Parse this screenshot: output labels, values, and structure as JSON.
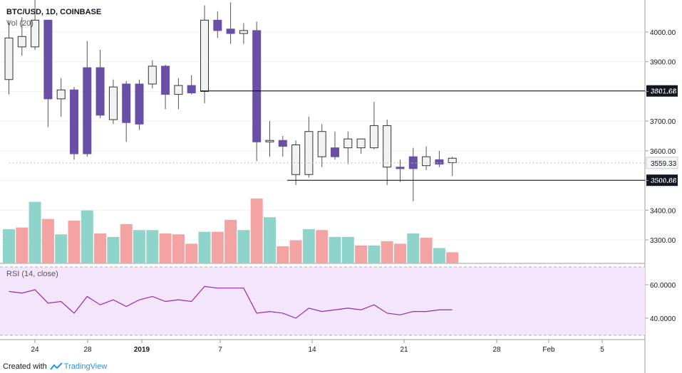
{
  "header": {
    "symbol_line": "BTC/USD, 1D, COINBASE",
    "volume_label": "Vol (20)",
    "rsi_label": "RSI (14, close)"
  },
  "footer": {
    "created_with": "Created with",
    "brand": "TradingView"
  },
  "colors": {
    "up_body": "#f2f2f2",
    "down_body": "#6a4fa6",
    "wick": "#555555",
    "vol_up": "#8fd4cb",
    "vol_down": "#f4a3a3",
    "rsi_line": "#9c27b0",
    "rsi_fill": "#f3e5fb",
    "level_line": "#000000"
  },
  "chart_data": [
    {
      "type": "candlestick",
      "title": "BTC/USD, 1D, COINBASE",
      "x_tick_labels": [
        "24",
        "28",
        "2019",
        "7",
        "14",
        "21",
        "28",
        "Feb",
        "5"
      ],
      "y_tick_labels": [
        "3300.00",
        "3400.00",
        "3500.00",
        "3600.00",
        "3700.00",
        "3800.00",
        "3900.00",
        "4000.00"
      ],
      "ylim": [
        3230,
        4100
      ],
      "horizontal_levels": [
        {
          "label": "3801.68",
          "value": 3801.68
        },
        {
          "label": "3500.88",
          "value": 3500.88
        }
      ],
      "last_price_label": "3559.33",
      "candles": [
        {
          "date": "2018-12-22",
          "open": 3840,
          "high": 4040,
          "low": 3790,
          "close": 3980
        },
        {
          "date": "2018-12-23",
          "open": 3950,
          "high": 4050,
          "low": 3920,
          "close": 3985
        },
        {
          "date": "2018-12-24",
          "open": 3950,
          "high": 4130,
          "low": 3940,
          "close": 4040
        },
        {
          "date": "2018-12-25",
          "open": 4040,
          "high": 4040,
          "low": 3680,
          "close": 3775
        },
        {
          "date": "2018-12-26",
          "open": 3775,
          "high": 3845,
          "low": 3715,
          "close": 3805
        },
        {
          "date": "2018-12-27",
          "open": 3805,
          "high": 3815,
          "low": 3570,
          "close": 3590
        },
        {
          "date": "2018-12-28",
          "open": 3880,
          "high": 3970,
          "low": 3580,
          "close": 3590
        },
        {
          "date": "2018-12-29",
          "open": 3880,
          "high": 3940,
          "low": 3710,
          "close": 3720
        },
        {
          "date": "2018-12-30",
          "open": 3705,
          "high": 3840,
          "low": 3690,
          "close": 3815
        },
        {
          "date": "2018-12-31",
          "open": 3825,
          "high": 3835,
          "low": 3630,
          "close": 3695
        },
        {
          "date": "2019-01-01",
          "open": 3825,
          "high": 3840,
          "low": 3670,
          "close": 3690
        },
        {
          "date": "2019-01-02",
          "open": 3825,
          "high": 3905,
          "low": 3810,
          "close": 3885
        },
        {
          "date": "2019-01-03",
          "open": 3885,
          "high": 3890,
          "low": 3740,
          "close": 3790
        },
        {
          "date": "2019-01-04",
          "open": 3790,
          "high": 3845,
          "low": 3740,
          "close": 3820
        },
        {
          "date": "2019-01-05",
          "open": 3820,
          "high": 3855,
          "low": 3790,
          "close": 3795
        },
        {
          "date": "2019-01-06",
          "open": 3800,
          "high": 4090,
          "low": 3760,
          "close": 4040
        },
        {
          "date": "2019-01-07",
          "open": 4040,
          "high": 4070,
          "low": 3980,
          "close": 4005
        },
        {
          "date": "2019-01-08",
          "open": 4010,
          "high": 4100,
          "low": 3960,
          "close": 3995
        },
        {
          "date": "2019-01-09",
          "open": 3995,
          "high": 4030,
          "low": 3960,
          "close": 4005
        },
        {
          "date": "2019-01-10",
          "open": 4005,
          "high": 4035,
          "low": 3565,
          "close": 3630
        },
        {
          "date": "2019-01-11",
          "open": 3630,
          "high": 3700,
          "low": 3580,
          "close": 3635
        },
        {
          "date": "2019-01-12",
          "open": 3635,
          "high": 3650,
          "low": 3580,
          "close": 3615
        },
        {
          "date": "2019-01-13",
          "open": 3520,
          "high": 3635,
          "low": 3485,
          "close": 3620
        },
        {
          "date": "2019-01-14",
          "open": 3520,
          "high": 3715,
          "low": 3510,
          "close": 3665
        },
        {
          "date": "2019-01-15",
          "open": 3580,
          "high": 3690,
          "low": 3545,
          "close": 3665
        },
        {
          "date": "2019-01-16",
          "open": 3610,
          "high": 3665,
          "low": 3570,
          "close": 3580
        },
        {
          "date": "2019-01-17",
          "open": 3610,
          "high": 3665,
          "low": 3555,
          "close": 3640
        },
        {
          "date": "2019-01-18",
          "open": 3610,
          "high": 3640,
          "low": 3590,
          "close": 3640
        },
        {
          "date": "2019-01-19",
          "open": 3610,
          "high": 3765,
          "low": 3605,
          "close": 3685
        },
        {
          "date": "2019-01-20",
          "open": 3545,
          "high": 3705,
          "low": 3485,
          "close": 3685
        },
        {
          "date": "2019-01-21",
          "open": 3545,
          "high": 3570,
          "low": 3495,
          "close": 3540
        },
        {
          "date": "2019-01-22",
          "open": 3580,
          "high": 3610,
          "low": 3430,
          "close": 3540
        },
        {
          "date": "2019-01-23",
          "open": 3550,
          "high": 3615,
          "low": 3535,
          "close": 3580
        },
        {
          "date": "2019-01-24",
          "open": 3570,
          "high": 3600,
          "low": 3545,
          "close": 3555
        },
        {
          "date": "2019-01-25",
          "open": 3560,
          "high": 3580,
          "low": 3515,
          "close": 3575
        }
      ]
    },
    {
      "type": "bar",
      "title": "Vol (20)",
      "series": [
        {
          "values": [
            40,
            42,
            72,
            52,
            34,
            50,
            62,
            35,
            31,
            46,
            39,
            39,
            35,
            34,
            23,
            37,
            37,
            51,
            39,
            76,
            54,
            20,
            27,
            40,
            39,
            31,
            31,
            21,
            21,
            26,
            23,
            35,
            30,
            18,
            13
          ]
        }
      ],
      "bar_directions": [
        "up",
        "down",
        "up",
        "down",
        "up",
        "down",
        "up",
        "down",
        "up",
        "down",
        "up",
        "up",
        "down",
        "down",
        "down",
        "up",
        "down",
        "down",
        "up",
        "down",
        "up",
        "down",
        "down",
        "up",
        "down",
        "up",
        "up",
        "down",
        "up",
        "down",
        "down",
        "up",
        "down",
        "up",
        "down"
      ]
    },
    {
      "type": "line",
      "title": "RSI (14, close)",
      "y_tick_labels": [
        "40.0000",
        "60.0000"
      ],
      "ylim": [
        28,
        72
      ],
      "bands": [
        30,
        70
      ],
      "series": [
        {
          "values": [
            56,
            55,
            57,
            49,
            50,
            43,
            53,
            48,
            51,
            47,
            51,
            53,
            50,
            51,
            50,
            59,
            58,
            58,
            58,
            43,
            44,
            43,
            40,
            46,
            44,
            45,
            46,
            45,
            48,
            43,
            42,
            44,
            44,
            45,
            45
          ]
        }
      ]
    }
  ]
}
